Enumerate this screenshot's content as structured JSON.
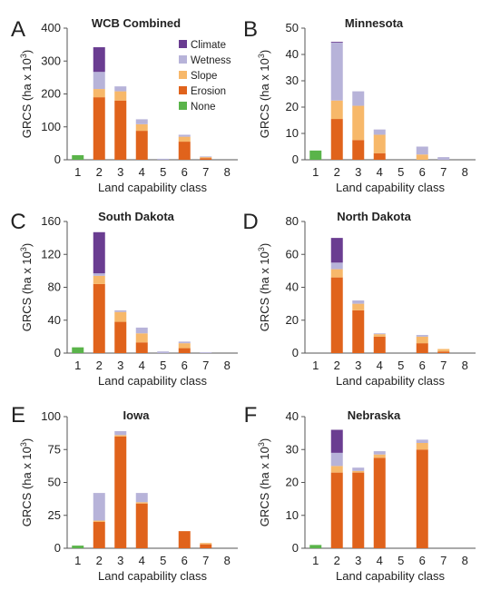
{
  "colors": {
    "Climate": "#6a3d91",
    "Wetness": "#b7b3d9",
    "Slope": "#f7b86a",
    "Erosion": "#e0631c",
    "None": "#5ab44a"
  },
  "legend": [
    "Climate",
    "Wetness",
    "Slope",
    "Erosion",
    "None"
  ],
  "chart_data": [
    {
      "panel": "A",
      "title": "WCB Combined",
      "type": "bar",
      "stacked": true,
      "categories": [
        "1",
        "2",
        "3",
        "4",
        "5",
        "6",
        "7",
        "8"
      ],
      "xlabel": "Land capability class",
      "ylabel": "GRCS (ha x 10³)",
      "ylim": [
        0,
        400
      ],
      "yticks": [
        0,
        100,
        200,
        300,
        400
      ],
      "series": [
        {
          "name": "None",
          "values": [
            14,
            0,
            0,
            0,
            0,
            0,
            0,
            0
          ]
        },
        {
          "name": "Erosion",
          "values": [
            0,
            190,
            180,
            88,
            0,
            55,
            5,
            0
          ]
        },
        {
          "name": "Slope",
          "values": [
            0,
            25,
            28,
            20,
            0,
            15,
            4,
            0
          ]
        },
        {
          "name": "Wetness",
          "values": [
            0,
            52,
            15,
            15,
            3,
            6,
            1,
            0
          ]
        },
        {
          "name": "Climate",
          "values": [
            0,
            75,
            0,
            0,
            0,
            0,
            0,
            0
          ]
        }
      ],
      "legend_position": "top-right"
    },
    {
      "panel": "B",
      "title": "Minnesota",
      "type": "bar",
      "stacked": true,
      "categories": [
        "1",
        "2",
        "3",
        "4",
        "5",
        "6",
        "7",
        "8"
      ],
      "xlabel": "Land capability class",
      "ylabel": "GRCS (ha x 10³)",
      "ylim": [
        0,
        50
      ],
      "yticks": [
        0,
        10,
        20,
        30,
        40,
        50
      ],
      "series": [
        {
          "name": "None",
          "values": [
            3.5,
            0,
            0,
            0,
            0,
            0,
            0,
            0
          ]
        },
        {
          "name": "Erosion",
          "values": [
            0,
            15.5,
            7.5,
            2.5,
            0,
            0,
            0,
            0
          ]
        },
        {
          "name": "Slope",
          "values": [
            0,
            7,
            13,
            7,
            0,
            2,
            0,
            0
          ]
        },
        {
          "name": "Wetness",
          "values": [
            0,
            22,
            5.5,
            2,
            0,
            3,
            1,
            0
          ]
        },
        {
          "name": "Climate",
          "values": [
            0,
            0.3,
            0,
            0,
            0,
            0,
            0,
            0
          ]
        }
      ]
    },
    {
      "panel": "C",
      "title": "South Dakota",
      "type": "bar",
      "stacked": true,
      "categories": [
        "1",
        "2",
        "3",
        "4",
        "5",
        "6",
        "7",
        "8"
      ],
      "xlabel": "Land capability class",
      "ylabel": "GRCS (ha x 10³)",
      "ylim": [
        0,
        160
      ],
      "yticks": [
        0,
        40,
        80,
        120,
        160
      ],
      "series": [
        {
          "name": "None",
          "values": [
            7,
            0,
            0,
            0,
            0,
            0,
            0,
            0
          ]
        },
        {
          "name": "Erosion",
          "values": [
            0,
            84,
            38,
            13,
            0,
            6,
            0,
            0
          ]
        },
        {
          "name": "Slope",
          "values": [
            0,
            10,
            12,
            11,
            0,
            6,
            0,
            0
          ]
        },
        {
          "name": "Wetness",
          "values": [
            0,
            3,
            2,
            7,
            2,
            2,
            1,
            0
          ]
        },
        {
          "name": "Climate",
          "values": [
            0,
            50,
            0,
            0,
            0,
            0,
            0,
            0
          ]
        }
      ]
    },
    {
      "panel": "D",
      "title": "North Dakota",
      "type": "bar",
      "stacked": true,
      "categories": [
        "1",
        "2",
        "3",
        "4",
        "5",
        "6",
        "7",
        "8"
      ],
      "xlabel": "Land capability class",
      "ylabel": "GRCS (ha x 10³)",
      "ylim": [
        0,
        80
      ],
      "yticks": [
        0,
        20,
        40,
        60,
        80
      ],
      "series": [
        {
          "name": "None",
          "values": [
            0,
            0,
            0,
            0,
            0,
            0,
            0,
            0
          ]
        },
        {
          "name": "Erosion",
          "values": [
            0,
            46,
            26,
            10,
            0,
            6,
            1,
            0
          ]
        },
        {
          "name": "Slope",
          "values": [
            0,
            5,
            4,
            1.5,
            0,
            4,
            1.5,
            0
          ]
        },
        {
          "name": "Wetness",
          "values": [
            0,
            4,
            2,
            0.5,
            0,
            1,
            0,
            0
          ]
        },
        {
          "name": "Climate",
          "values": [
            0,
            15,
            0,
            0,
            0,
            0,
            0,
            0
          ]
        }
      ]
    },
    {
      "panel": "E",
      "title": "Iowa",
      "type": "bar",
      "stacked": true,
      "categories": [
        "1",
        "2",
        "3",
        "4",
        "5",
        "6",
        "7",
        "8"
      ],
      "xlabel": "Land capability class",
      "ylabel": "GRCS (ha x 10³)",
      "ylim": [
        0,
        100
      ],
      "yticks": [
        0,
        25,
        50,
        75,
        100
      ],
      "series": [
        {
          "name": "None",
          "values": [
            2,
            0,
            0,
            0,
            0,
            0,
            0,
            0
          ]
        },
        {
          "name": "Erosion",
          "values": [
            0,
            20,
            85,
            34,
            0,
            13,
            3,
            0
          ]
        },
        {
          "name": "Slope",
          "values": [
            0,
            1,
            1,
            1,
            0,
            0,
            1,
            0
          ]
        },
        {
          "name": "Wetness",
          "values": [
            0,
            21,
            3,
            7,
            0,
            0,
            0,
            0
          ]
        },
        {
          "name": "Climate",
          "values": [
            0,
            0,
            0,
            0,
            0,
            0,
            0,
            0
          ]
        }
      ]
    },
    {
      "panel": "F",
      "title": "Nebraska",
      "type": "bar",
      "stacked": true,
      "categories": [
        "1",
        "2",
        "3",
        "4",
        "5",
        "6",
        "7",
        "8"
      ],
      "xlabel": "Land capability class",
      "ylabel": "GRCS (ha x 10³)",
      "ylim": [
        0,
        40
      ],
      "yticks": [
        0,
        10,
        20,
        30,
        40
      ],
      "series": [
        {
          "name": "None",
          "values": [
            1,
            0,
            0,
            0,
            0,
            0,
            0,
            0
          ]
        },
        {
          "name": "Erosion",
          "values": [
            0,
            23,
            23,
            27.5,
            0,
            30,
            0,
            0
          ]
        },
        {
          "name": "Slope",
          "values": [
            0,
            2,
            0.5,
            1,
            0,
            2,
            0,
            0
          ]
        },
        {
          "name": "Wetness",
          "values": [
            0,
            4,
            1,
            1,
            0,
            1,
            0,
            0
          ]
        },
        {
          "name": "Climate",
          "values": [
            0,
            7,
            0,
            0,
            0,
            0,
            0,
            0
          ]
        }
      ]
    }
  ]
}
